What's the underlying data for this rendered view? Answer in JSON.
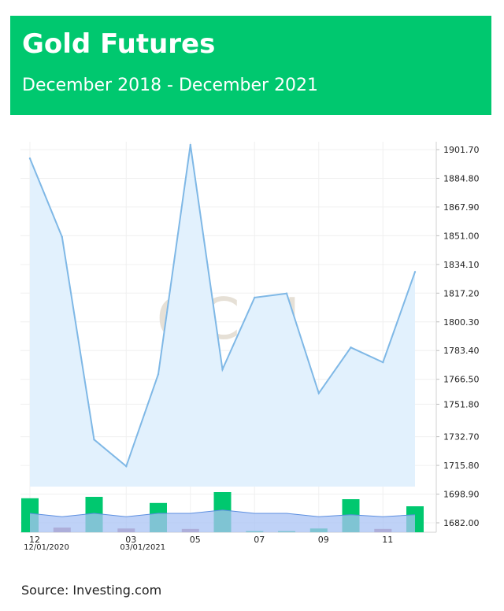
{
  "header": {
    "title": "Gold Futures",
    "subtitle": "December 2018 - December 2021"
  },
  "source": "Source:  Investing.com",
  "chart_data": {
    "type": "area",
    "watermark": "GC.N",
    "x": [
      "2020-12",
      "2021-01",
      "2021-02",
      "2021-03",
      "2021-04",
      "2021-05",
      "2021-06",
      "2021-07",
      "2021-08",
      "2021-09",
      "2021-10",
      "2021-11",
      "2021-12"
    ],
    "values": [
      1896.5,
      1850.3,
      1731.0,
      1715.3,
      1769.5,
      1904.5,
      1772.3,
      1814.6,
      1817.0,
      1758.3,
      1785.2,
      1776.5,
      1829.7
    ],
    "y_ticks": [
      "1901.70",
      "1884.80",
      "1867.90",
      "1851.00",
      "1834.10",
      "1817.20",
      "1800.30",
      "1783.40",
      "1766.50",
      "1751.80",
      "1732.70",
      "1715.80",
      "1698.90",
      "1682.00"
    ],
    "x_ticks": [
      "12",
      "03",
      "05",
      "07",
      "09",
      "11"
    ],
    "x_dates": [
      "12/01/2020",
      "03/01/2021"
    ],
    "volume": {
      "bars": [
        {
          "value": 0.72,
          "direction": "up"
        },
        {
          "value": 0.1,
          "direction": "down"
        },
        {
          "value": 0.75,
          "direction": "up"
        },
        {
          "value": 0.08,
          "direction": "down"
        },
        {
          "value": 0.62,
          "direction": "up"
        },
        {
          "value": 0.07,
          "direction": "down"
        },
        {
          "value": 0.85,
          "direction": "up"
        },
        {
          "value": 0.02,
          "direction": "up"
        },
        {
          "value": 0.02,
          "direction": "up"
        },
        {
          "value": 0.08,
          "direction": "up"
        },
        {
          "value": 0.7,
          "direction": "up"
        },
        {
          "value": 0.07,
          "direction": "down"
        },
        {
          "value": 0.55,
          "direction": "up"
        }
      ],
      "average": [
        0.4,
        0.33,
        0.4,
        0.33,
        0.4,
        0.4,
        0.47,
        0.4,
        0.4,
        0.33,
        0.37,
        0.33,
        0.37
      ]
    },
    "colors": {
      "line": "#7fb8e6",
      "area": "#e2f1fd",
      "up": "#00c86f",
      "down": "#b8708a",
      "volume_area": "#a9c3f4",
      "volume_line": "#5b8ee0"
    }
  }
}
